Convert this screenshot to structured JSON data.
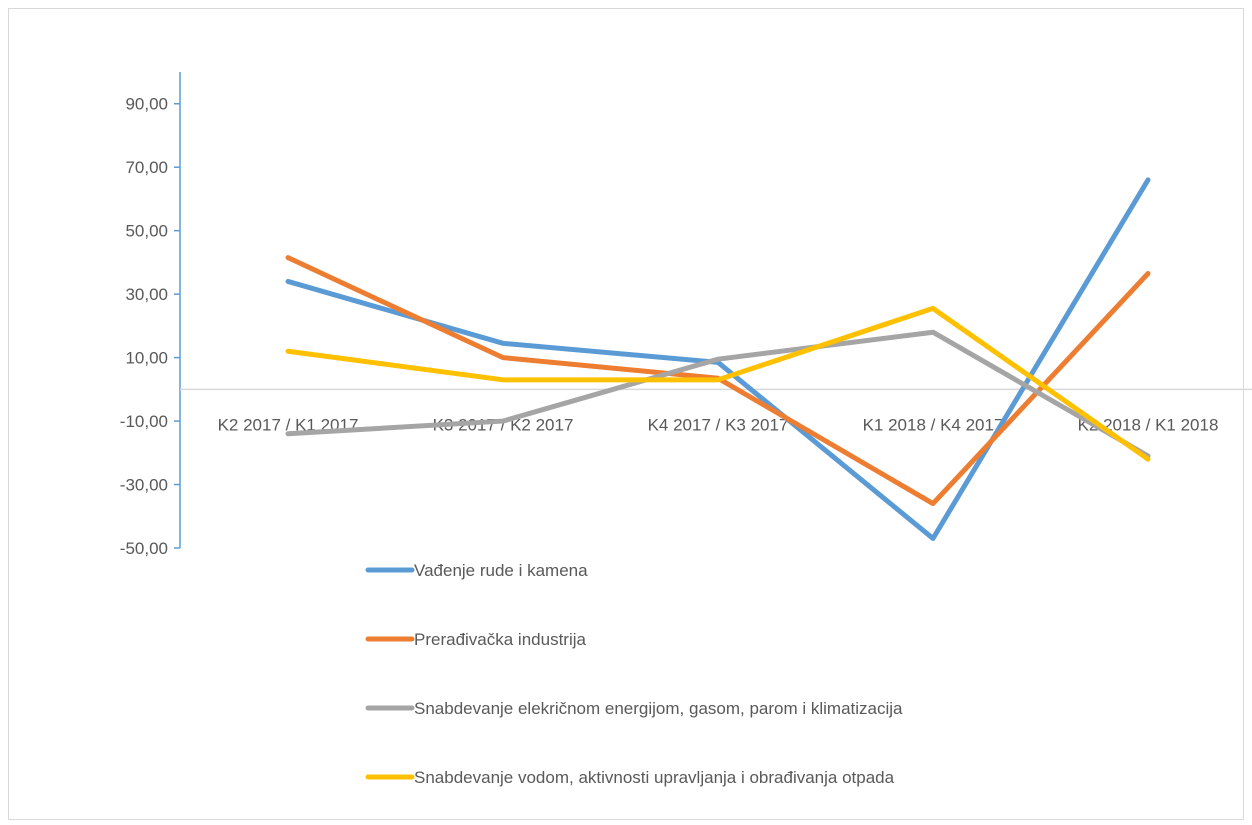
{
  "chart_data": {
    "type": "line",
    "title": "",
    "xlabel": "",
    "ylabel": "",
    "categories": [
      "K2 2017 / K1 2017",
      "K3 2017 / K2 2017",
      "K4 2017 / K3 2017",
      "K1 2018 / K4 2017",
      "K2 2018 / K1 2018"
    ],
    "y_ticks": [
      "90,00",
      "70,00",
      "50,00",
      "30,00",
      "10,00",
      "-10,00",
      "-30,00",
      "-50,00"
    ],
    "ylim": [
      -50,
      100
    ],
    "grid": false,
    "legend_position": "bottom",
    "series": [
      {
        "name": "Vađenje rude i kamena",
        "color": "#5b9bd5",
        "values": [
          34.0,
          14.5,
          8.5,
          -47.0,
          66.0
        ]
      },
      {
        "name": "Prerađivačka industrija",
        "color": "#ed7d31",
        "values": [
          41.5,
          10.0,
          3.5,
          -36.0,
          36.5
        ]
      },
      {
        "name": "Snabdevanje elekričnom energijom, gasom, parom i klimatizacija",
        "color": "#a5a5a5",
        "values": [
          -14.0,
          -10.0,
          9.5,
          18.0,
          -21.0
        ]
      },
      {
        "name": "Snabdevanje vodom, aktivnosti upravljanja i obrađivanja  otpada",
        "color": "#ffc000",
        "values": [
          12.0,
          3.0,
          3.0,
          25.5,
          -22.0
        ]
      }
    ]
  }
}
